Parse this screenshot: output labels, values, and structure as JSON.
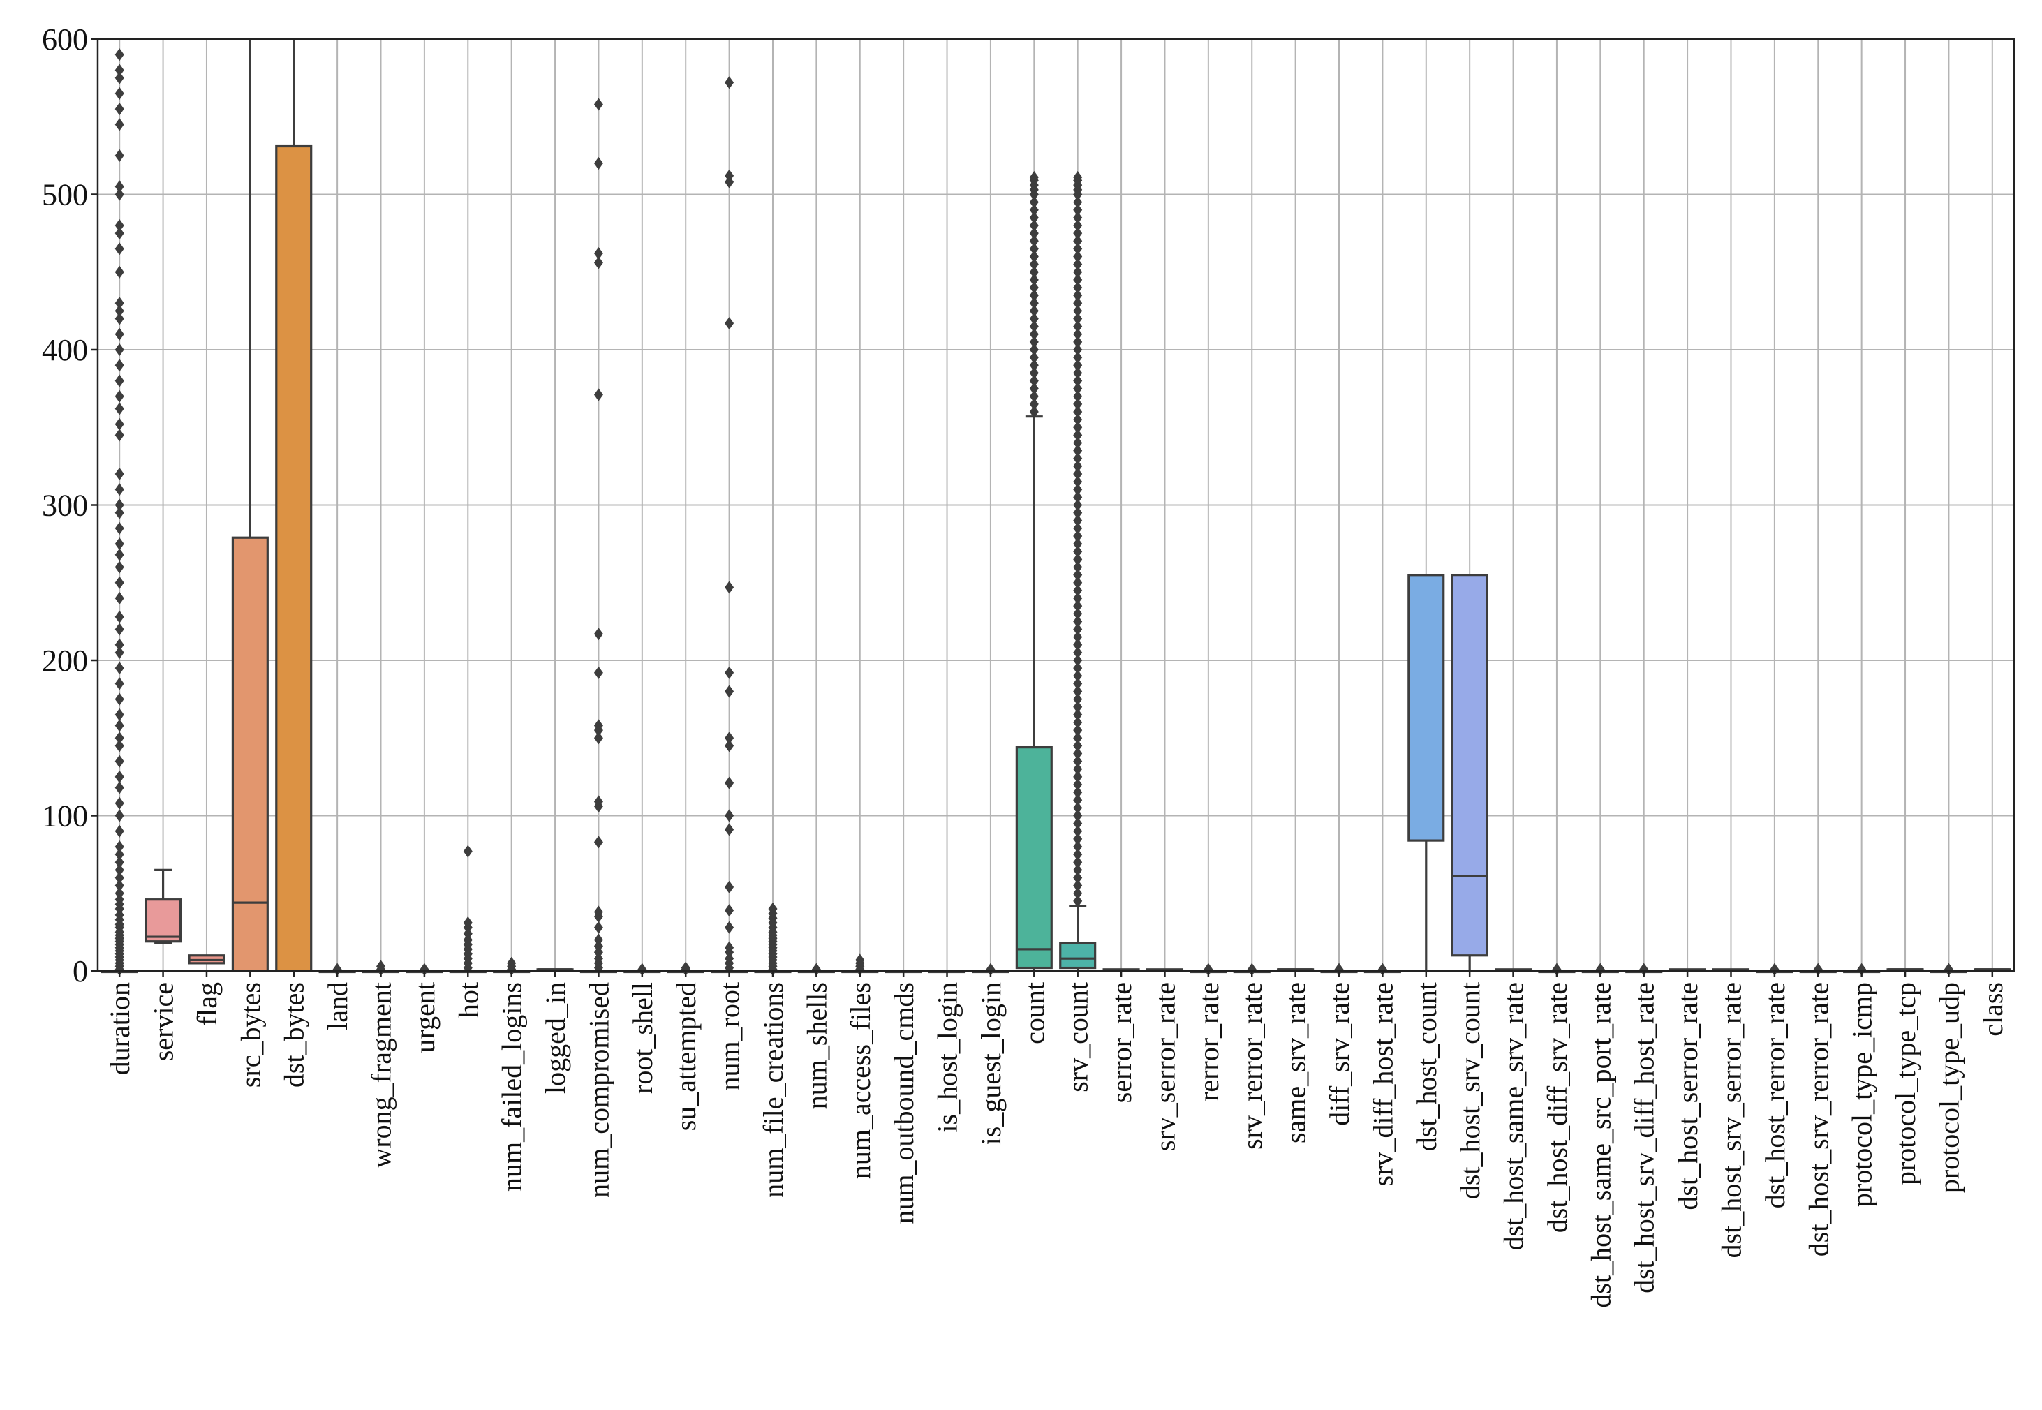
{
  "chart_data": {
    "type": "box",
    "title": "",
    "xlabel": "",
    "ylabel": "",
    "ylim": [
      0,
      600
    ],
    "yticks": [
      0,
      100,
      200,
      300,
      400,
      500,
      600
    ],
    "ytick_labels": [
      "0",
      "100",
      "200",
      "300",
      "400",
      "500",
      "600"
    ],
    "grid": true,
    "legend": "none",
    "categories": [
      "duration",
      "service",
      "flag",
      "src_bytes",
      "dst_bytes",
      "land",
      "wrong_fragment",
      "urgent",
      "hot",
      "num_failed_logins",
      "logged_in",
      "num_compromised",
      "root_shell",
      "su_attempted",
      "num_root",
      "num_file_creations",
      "num_shells",
      "num_access_files",
      "num_outbound_cmds",
      "is_host_login",
      "is_guest_login",
      "count",
      "srv_count",
      "serror_rate",
      "srv_serror_rate",
      "rerror_rate",
      "srv_rerror_rate",
      "same_srv_rate",
      "diff_srv_rate",
      "srv_diff_host_rate",
      "dst_host_count",
      "dst_host_srv_count",
      "dst_host_same_srv_rate",
      "dst_host_diff_srv_rate",
      "dst_host_same_src_port_rate",
      "dst_host_srv_diff_host_rate",
      "dst_host_serror_rate",
      "dst_host_srv_serror_rate",
      "dst_host_rerror_rate",
      "dst_host_srv_rerror_rate",
      "protocol_type_icmp",
      "protocol_type_tcp",
      "protocol_type_udp",
      "class"
    ],
    "boxes": [
      {
        "q1": 0,
        "median": 0,
        "q3": 0,
        "whislo": 0,
        "whishi": 0,
        "fliers": [
          1,
          3,
          5,
          7,
          9,
          11,
          13,
          15,
          17,
          19,
          21,
          23,
          25,
          28,
          30,
          33,
          36,
          40,
          43,
          46,
          50,
          55,
          60,
          65,
          70,
          75,
          80,
          90,
          100,
          108,
          118,
          125,
          135,
          145,
          150,
          158,
          165,
          175,
          185,
          195,
          205,
          210,
          220,
          228,
          240,
          250,
          260,
          268,
          275,
          285,
          295,
          300,
          310,
          320,
          345,
          352,
          362,
          370,
          380,
          390,
          400,
          410,
          420,
          425,
          430,
          450,
          465,
          475,
          480,
          500,
          505,
          525,
          545,
          555,
          565,
          575,
          580,
          590
        ]
      },
      {
        "q1": 19,
        "median": 22,
        "q3": 46,
        "whislo": 18,
        "whishi": 65,
        "fliers": [],
        "color": "#e89a9a"
      },
      {
        "q1": 5,
        "median": 7,
        "q3": 10,
        "whislo": 5,
        "whishi": 10,
        "fliers": [],
        "color": "#e8958a"
      },
      {
        "q1": 0,
        "median": 44,
        "q3": 279,
        "whislo": 0,
        "whishi": 600,
        "fliers": [],
        "color": "#e2966e"
      },
      {
        "q1": 0,
        "median": 0,
        "q3": 531,
        "whislo": 0,
        "whishi": 600,
        "fliers": [],
        "color": "#dc9244"
      },
      {
        "q1": 0,
        "median": 0,
        "q3": 0,
        "whislo": 0,
        "whishi": 0,
        "fliers": [
          1
        ]
      },
      {
        "q1": 0,
        "median": 0,
        "q3": 0,
        "whislo": 0,
        "whishi": 0,
        "fliers": [
          1,
          3
        ]
      },
      {
        "q1": 0,
        "median": 0,
        "q3": 0,
        "whislo": 0,
        "whishi": 0,
        "fliers": [
          1
        ]
      },
      {
        "q1": 0,
        "median": 0,
        "q3": 0,
        "whislo": 0,
        "whishi": 0,
        "fliers": [
          2,
          5,
          8,
          11,
          14,
          17,
          20,
          24,
          28,
          31,
          77
        ]
      },
      {
        "q1": 0,
        "median": 0,
        "q3": 0,
        "whislo": 0,
        "whishi": 0,
        "fliers": [
          1,
          3,
          5
        ]
      },
      {
        "q1": 0,
        "median": 1,
        "q3": 1,
        "whislo": 0,
        "whishi": 1,
        "fliers": []
      },
      {
        "q1": 0,
        "median": 0,
        "q3": 0,
        "whislo": 0,
        "whishi": 0,
        "fliers": [
          2,
          5,
          8,
          12,
          16,
          20,
          28,
          35,
          38,
          83,
          106,
          109,
          150,
          155,
          158,
          192,
          217,
          371,
          456,
          462,
          520,
          558
        ]
      },
      {
        "q1": 0,
        "median": 0,
        "q3": 0,
        "whislo": 0,
        "whishi": 0,
        "fliers": [
          1
        ]
      },
      {
        "q1": 0,
        "median": 0,
        "q3": 0,
        "whislo": 0,
        "whishi": 0,
        "fliers": [
          1,
          2
        ]
      },
      {
        "q1": 0,
        "median": 0,
        "q3": 0,
        "whislo": 0,
        "whishi": 0,
        "fliers": [
          2,
          5,
          8,
          12,
          15,
          28,
          39,
          54,
          91,
          100,
          121,
          145,
          150,
          180,
          192,
          247,
          417,
          508,
          512,
          572
        ]
      },
      {
        "q1": 0,
        "median": 0,
        "q3": 0,
        "whislo": 0,
        "whishi": 0,
        "fliers": [
          1,
          3,
          5,
          7,
          9,
          11,
          13,
          15,
          17,
          19,
          21,
          23,
          25,
          28,
          31,
          34,
          37,
          40
        ]
      },
      {
        "q1": 0,
        "median": 0,
        "q3": 0,
        "whislo": 0,
        "whishi": 0,
        "fliers": [
          1
        ]
      },
      {
        "q1": 0,
        "median": 0,
        "q3": 0,
        "whislo": 0,
        "whishi": 0,
        "fliers": [
          1,
          3,
          5,
          7
        ]
      },
      {
        "q1": 0,
        "median": 0,
        "q3": 0,
        "whislo": 0,
        "whishi": 0,
        "fliers": []
      },
      {
        "q1": 0,
        "median": 0,
        "q3": 0,
        "whislo": 0,
        "whishi": 0,
        "fliers": []
      },
      {
        "q1": 0,
        "median": 0,
        "q3": 0,
        "whislo": 0,
        "whishi": 0,
        "fliers": [
          1
        ]
      },
      {
        "q1": 2,
        "median": 14,
        "q3": 144,
        "whislo": 0,
        "whishi": 357,
        "color": "#4db39a",
        "fliers": [
          360,
          365,
          370,
          375,
          380,
          385,
          390,
          395,
          400,
          405,
          410,
          415,
          420,
          425,
          430,
          435,
          440,
          445,
          450,
          455,
          460,
          465,
          470,
          475,
          480,
          485,
          490,
          495,
          500,
          503,
          506,
          509,
          511
        ]
      },
      {
        "q1": 2,
        "median": 8,
        "q3": 18,
        "whislo": 0,
        "whishi": 42,
        "color": "#4db3a8",
        "fliers": [
          45,
          50,
          55,
          60,
          65,
          70,
          75,
          80,
          85,
          90,
          95,
          100,
          105,
          110,
          115,
          120,
          125,
          130,
          135,
          140,
          145,
          150,
          155,
          160,
          165,
          170,
          175,
          180,
          185,
          190,
          195,
          200,
          205,
          210,
          215,
          220,
          225,
          230,
          235,
          240,
          245,
          250,
          255,
          260,
          265,
          270,
          275,
          280,
          285,
          290,
          295,
          300,
          305,
          310,
          315,
          320,
          325,
          330,
          335,
          340,
          345,
          350,
          355,
          360,
          365,
          370,
          375,
          380,
          385,
          390,
          395,
          400,
          405,
          410,
          415,
          420,
          425,
          430,
          435,
          440,
          445,
          450,
          455,
          460,
          465,
          470,
          475,
          480,
          485,
          490,
          495,
          500,
          503,
          506,
          509,
          511
        ]
      },
      {
        "q1": 0,
        "median": 0,
        "q3": 1,
        "whislo": 0,
        "whishi": 1,
        "fliers": []
      },
      {
        "q1": 0,
        "median": 0,
        "q3": 1,
        "whislo": 0,
        "whishi": 1,
        "fliers": []
      },
      {
        "q1": 0,
        "median": 0,
        "q3": 0,
        "whislo": 0,
        "whishi": 0,
        "fliers": [
          1
        ]
      },
      {
        "q1": 0,
        "median": 0,
        "q3": 0,
        "whislo": 0,
        "whishi": 0,
        "fliers": [
          1
        ]
      },
      {
        "q1": 0,
        "median": 1,
        "q3": 1,
        "whislo": 0,
        "whishi": 1,
        "fliers": []
      },
      {
        "q1": 0,
        "median": 0,
        "q3": 0,
        "whislo": 0,
        "whishi": 0,
        "fliers": [
          1
        ]
      },
      {
        "q1": 0,
        "median": 0,
        "q3": 0,
        "whislo": 0,
        "whishi": 0,
        "fliers": [
          1
        ]
      },
      {
        "q1": 84,
        "median": 255,
        "q3": 255,
        "whislo": 0,
        "whishi": 255,
        "fliers": [],
        "color": "#7aace3"
      },
      {
        "q1": 10,
        "median": 61,
        "q3": 255,
        "whislo": 0,
        "whishi": 255,
        "fliers": [],
        "color": "#97aae8"
      },
      {
        "q1": 0,
        "median": 0,
        "q3": 1,
        "whislo": 0,
        "whishi": 1,
        "fliers": []
      },
      {
        "q1": 0,
        "median": 0,
        "q3": 0,
        "whislo": 0,
        "whishi": 0,
        "fliers": [
          1
        ]
      },
      {
        "q1": 0,
        "median": 0,
        "q3": 0,
        "whislo": 0,
        "whishi": 0,
        "fliers": [
          1
        ]
      },
      {
        "q1": 0,
        "median": 0,
        "q3": 0,
        "whislo": 0,
        "whishi": 0,
        "fliers": [
          1
        ]
      },
      {
        "q1": 0,
        "median": 0,
        "q3": 1,
        "whislo": 0,
        "whishi": 1,
        "fliers": []
      },
      {
        "q1": 0,
        "median": 0,
        "q3": 1,
        "whislo": 0,
        "whishi": 1,
        "fliers": []
      },
      {
        "q1": 0,
        "median": 0,
        "q3": 0,
        "whislo": 0,
        "whishi": 0,
        "fliers": [
          1
        ]
      },
      {
        "q1": 0,
        "median": 0,
        "q3": 0,
        "whislo": 0,
        "whishi": 0,
        "fliers": [
          1
        ]
      },
      {
        "q1": 0,
        "median": 0,
        "q3": 0,
        "whislo": 0,
        "whishi": 0,
        "fliers": [
          1
        ]
      },
      {
        "q1": 0,
        "median": 1,
        "q3": 1,
        "whislo": 0,
        "whishi": 1,
        "fliers": []
      },
      {
        "q1": 0,
        "median": 0,
        "q3": 0,
        "whislo": 0,
        "whishi": 0,
        "fliers": [
          1
        ]
      },
      {
        "q1": 0,
        "median": 1,
        "q3": 1,
        "whislo": 0,
        "whishi": 1,
        "fliers": []
      }
    ]
  }
}
